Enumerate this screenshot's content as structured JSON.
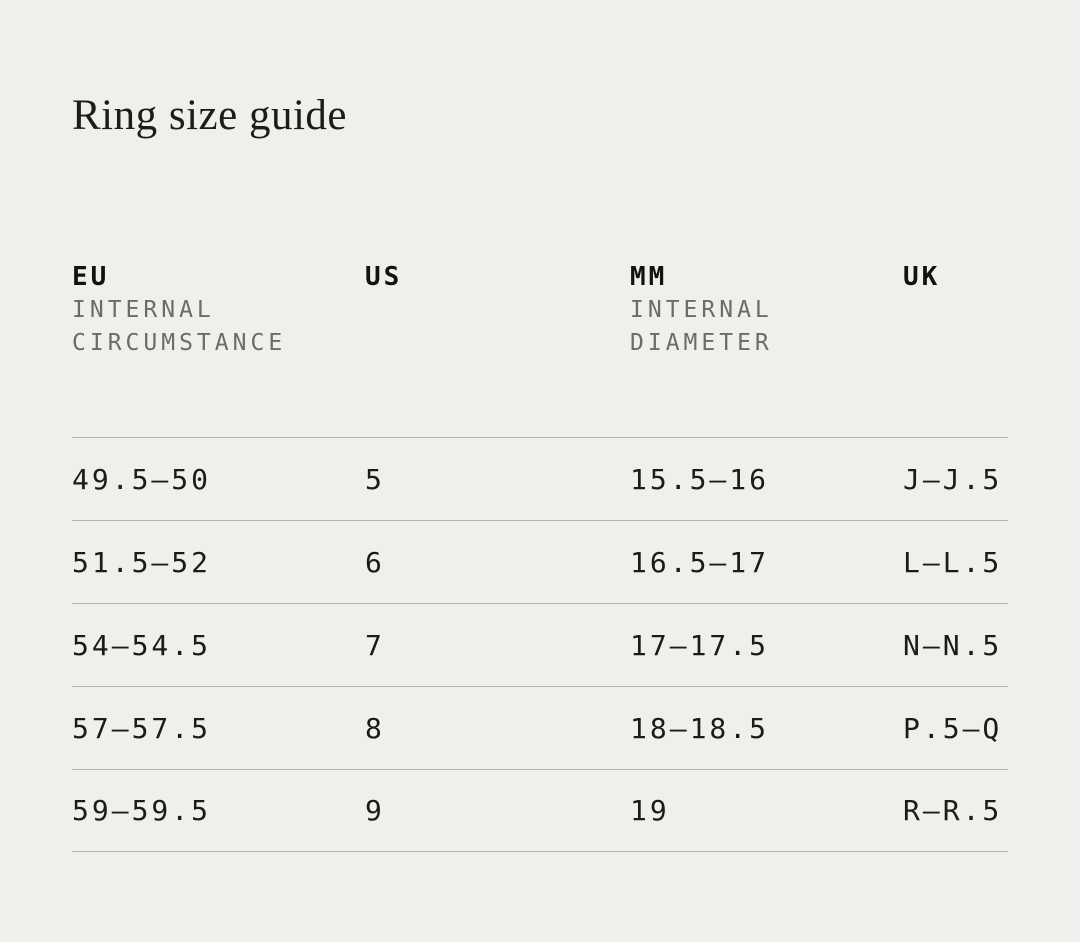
{
  "page": {
    "title": "Ring size guide"
  },
  "colors": {
    "background": "#f0efec",
    "text": "#1b1b19",
    "header_text": "#121210",
    "subheader_text": "#6c6b68",
    "divider": "#b5b4b2"
  },
  "table": {
    "columns": [
      {
        "label": "EU",
        "sublines": [
          "INTERNAL",
          "CIRCUMSTANCE"
        ]
      },
      {
        "label": "US",
        "sublines": []
      },
      {
        "label": "MM",
        "sublines": [
          "INTERNAL",
          "DIAMETER"
        ]
      },
      {
        "label": "UK",
        "sublines": []
      }
    ],
    "rows": [
      [
        "49.5—50",
        "5",
        "15.5—16",
        "J—J.5"
      ],
      [
        "51.5—52",
        "6",
        "16.5—17",
        "L—L.5"
      ],
      [
        "54—54.5",
        "7",
        "17—17.5",
        "N—N.5"
      ],
      [
        "57—57.5",
        "8",
        "18—18.5",
        "P.5—Q"
      ],
      [
        "59—59.5",
        "9",
        "19",
        "R—R.5"
      ]
    ]
  }
}
